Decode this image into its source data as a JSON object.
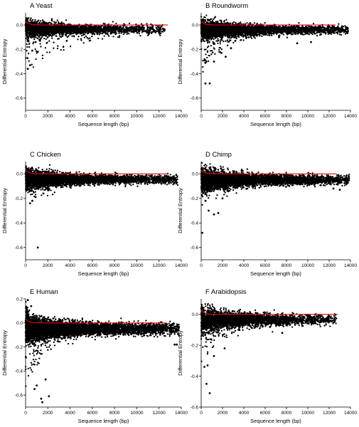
{
  "chart_data": [
    {
      "type": "scatter",
      "title": "A Yeast",
      "xlabel": "Sequence length (bp)",
      "ylabel": "Differential Entropy",
      "xlim": [
        0,
        14000
      ],
      "ylim": [
        -0.7,
        0.1
      ],
      "x_ticks": [
        "0",
        "2000",
        "4000",
        "6000",
        "8000",
        "10000",
        "12000",
        "14000"
      ],
      "y_ticks": [
        "0.0",
        "-0.2",
        "-0.4",
        "-0.6"
      ],
      "reference_line": {
        "y": 0.0,
        "x_range": [
          0,
          12800
        ],
        "color": "#e8000b"
      },
      "series": [
        {
          "points": {
            "n": 2800,
            "x_max": 12500,
            "median_y": -0.035,
            "spread": 0.03,
            "tail_depth": 0.33,
            "tail_rate": 2.6,
            "peak_y": 0.09
          },
          "outliers": [
            [
              200,
              -0.36
            ],
            [
              400,
              -0.33
            ],
            [
              600,
              -0.21
            ],
            [
              900,
              -0.14
            ],
            [
              1300,
              -0.13
            ],
            [
              3700,
              -0.13
            ],
            [
              11800,
              -0.05
            ],
            [
              12500,
              -0.04
            ]
          ]
        }
      ]
    },
    {
      "type": "scatter",
      "title": "B Roundworm",
      "xlabel": "Sequence length (bp)",
      "ylabel": "Differential Entropy",
      "xlim": [
        0,
        14000
      ],
      "ylim": [
        -0.7,
        0.1
      ],
      "x_ticks": [
        "0",
        "2000",
        "4000",
        "6000",
        "8000",
        "10000",
        "12000",
        "14000"
      ],
      "y_ticks": [
        "0.0",
        "-0.2",
        "-0.4",
        "-0.6"
      ],
      "reference_line": {
        "y": 0.0,
        "x_range": [
          0,
          12600
        ],
        "color": "#e8000b"
      },
      "series": [
        {
          "points": {
            "n": 4500,
            "x_max": 13800,
            "median_y": -0.04,
            "spread": 0.03,
            "tail_depth": 0.3,
            "tail_rate": 1.6,
            "peak_y": 0.05
          },
          "outliers": [
            [
              400,
              -0.48
            ],
            [
              800,
              -0.48
            ],
            [
              400,
              -0.31
            ],
            [
              1200,
              -0.3
            ],
            [
              2300,
              -0.26
            ],
            [
              2800,
              -0.19
            ],
            [
              1900,
              -0.23
            ],
            [
              3200,
              -0.13
            ],
            [
              7300,
              -0.1
            ],
            [
              9000,
              -0.15
            ],
            [
              10300,
              -0.14
            ]
          ]
        }
      ]
    },
    {
      "type": "scatter",
      "title": "C Chicken",
      "xlabel": "Sequence length (bp)",
      "ylabel": "Differential Entropy",
      "xlim": [
        0,
        14000
      ],
      "ylim": [
        -0.7,
        0.1
      ],
      "x_ticks": [
        "0",
        "2000",
        "4000",
        "6000",
        "8000",
        "10000",
        "12000",
        "14000"
      ],
      "y_ticks": [
        "0.0",
        "-0.2",
        "-0.4",
        "-0.6"
      ],
      "reference_line": {
        "y": 0.0,
        "x_range": [
          0,
          12700
        ],
        "color": "#e8000b"
      },
      "series": [
        {
          "points": {
            "n": 5000,
            "x_max": 13700,
            "median_y": -0.045,
            "spread": 0.03,
            "tail_depth": 0.15,
            "tail_rate": 1.6,
            "peak_y": 0.08
          },
          "outliers": [
            [
              1100,
              -0.6
            ],
            [
              400,
              -0.24
            ],
            [
              600,
              -0.22
            ],
            [
              900,
              -0.19
            ],
            [
              1600,
              -0.16
            ],
            [
              2100,
              -0.13
            ]
          ]
        }
      ]
    },
    {
      "type": "scatter",
      "title": "D Chimp",
      "xlabel": "Sequence length (bp)",
      "ylabel": "Differential Entropy",
      "xlim": [
        0,
        14000
      ],
      "ylim": [
        -0.7,
        0.1
      ],
      "x_ticks": [
        "0",
        "2000",
        "4000",
        "6000",
        "8000",
        "10000",
        "12000",
        "14000"
      ],
      "y_ticks": [
        "0.0",
        "-0.2",
        "-0.4",
        "-0.6"
      ],
      "reference_line": {
        "y": 0.0,
        "x_range": [
          0,
          12700
        ],
        "color": "#e8000b"
      },
      "series": [
        {
          "points": {
            "n": 5200,
            "x_max": 13900,
            "median_y": -0.05,
            "spread": 0.035,
            "tail_depth": 0.2,
            "tail_rate": 1.4,
            "peak_y": 0.07
          },
          "outliers": [
            [
              100,
              -0.48
            ],
            [
              700,
              -0.3
            ],
            [
              1200,
              -0.33
            ],
            [
              1600,
              -0.32
            ],
            [
              400,
              -0.22
            ],
            [
              2000,
              -0.2
            ],
            [
              13000,
              -0.13
            ],
            [
              12400,
              -0.12
            ]
          ]
        }
      ]
    },
    {
      "type": "scatter",
      "title": "E Human",
      "xlabel": "Sequence length (bp)",
      "ylabel": "Differential Entropy",
      "xlim": [
        0,
        14000
      ],
      "ylim": [
        -0.7,
        0.2
      ],
      "x_ticks": [
        "0",
        "2000",
        "4000",
        "6000",
        "8000",
        "10000",
        "12000",
        "14000"
      ],
      "y_ticks": [
        "0.2",
        "0.0",
        "-0.2",
        "-0.4",
        "-0.6"
      ],
      "reference_line": {
        "y": 0.0,
        "x_range": [
          0,
          12700
        ],
        "color": "#e8000b"
      },
      "series": [
        {
          "points": {
            "n": 7000,
            "x_max": 13800,
            "median_y": -0.05,
            "spread": 0.04,
            "tail_depth": 0.45,
            "tail_rate": 1.1,
            "peak_y": 0.19
          },
          "outliers": [
            [
              200,
              0.19
            ],
            [
              500,
              0.14
            ],
            [
              1400,
              -0.63
            ],
            [
              1500,
              -0.66
            ],
            [
              2100,
              -0.61
            ],
            [
              800,
              -0.55
            ],
            [
              1000,
              -0.52
            ],
            [
              1800,
              -0.47
            ],
            [
              13400,
              -0.18
            ],
            [
              13600,
              -0.18
            ]
          ]
        }
      ]
    },
    {
      "type": "scatter",
      "title": "F Arabidopsis",
      "xlabel": "Sequence length (bp)",
      "ylabel": "Differential Entropy",
      "xlim": [
        0,
        14000
      ],
      "ylim": [
        -0.6,
        0.1
      ],
      "x_ticks": [
        "0",
        "2000",
        "4000",
        "6000",
        "8000",
        "10000",
        "12000",
        "14000"
      ],
      "y_ticks": [
        "0.0",
        "-0.2",
        "-0.4",
        "-0.6"
      ],
      "reference_line": {
        "y": 0.0,
        "x_range": [
          0,
          12800
        ],
        "color": "#e8000b"
      },
      "series": [
        {
          "points": {
            "n": 3800,
            "x_max": 12700,
            "median_y": -0.035,
            "spread": 0.03,
            "tail_depth": 0.22,
            "tail_rate": 1.8,
            "peak_y": 0.08
          },
          "outliers": [
            [
              500,
              -0.45
            ],
            [
              800,
              -0.51
            ],
            [
              300,
              -0.34
            ],
            [
              600,
              -0.33
            ],
            [
              1200,
              -0.27
            ],
            [
              2200,
              -0.22
            ],
            [
              3500,
              -0.1
            ],
            [
              7600,
              -0.12
            ]
          ]
        }
      ]
    }
  ]
}
